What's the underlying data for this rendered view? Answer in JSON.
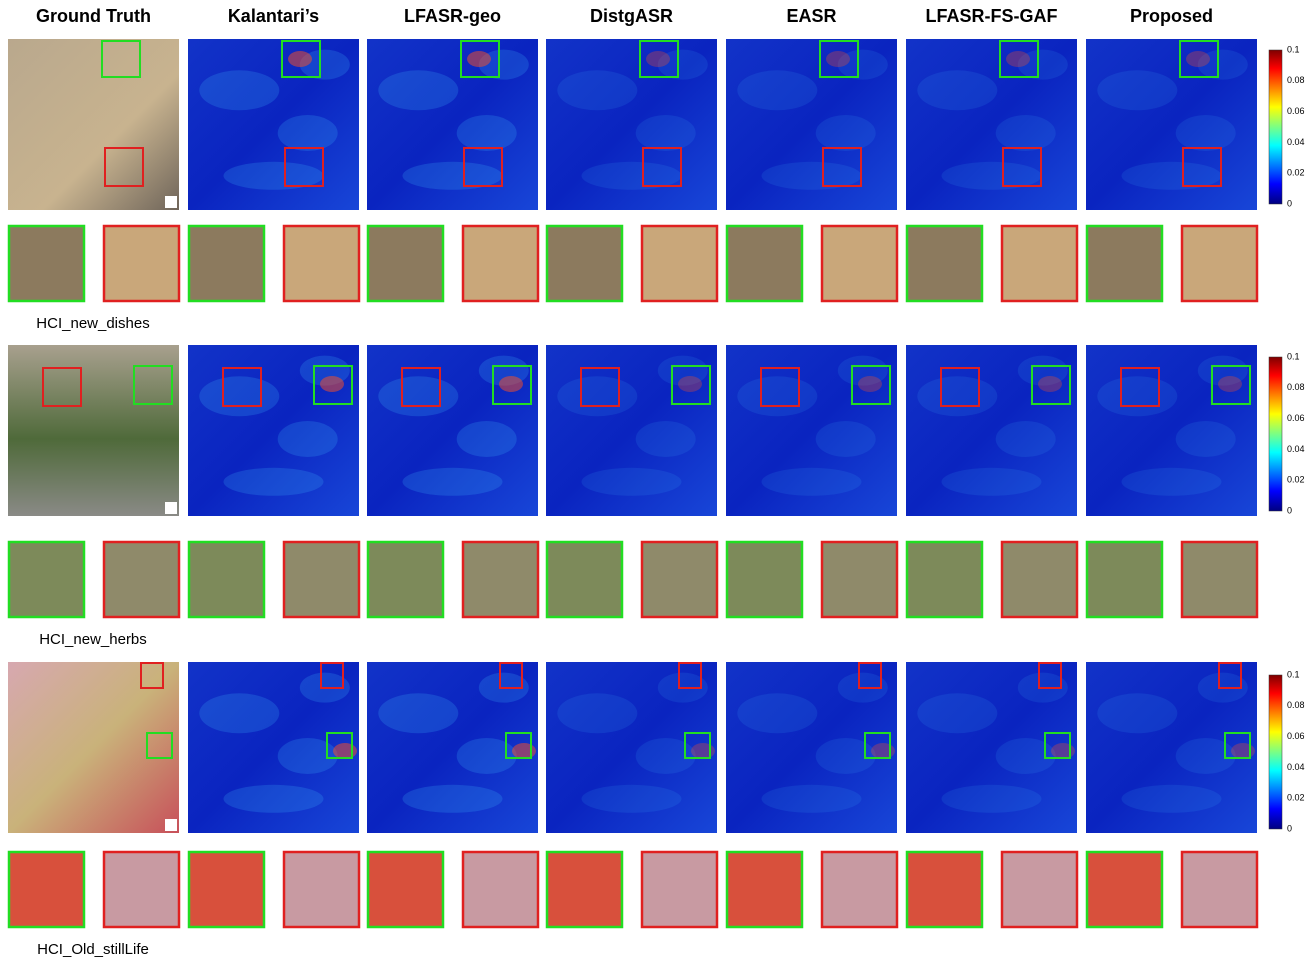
{
  "columns": [
    "Ground Truth",
    "Kalantari’s",
    "LFASR-geo",
    "DistgASR",
    "EASR",
    "LFASR-FS-GAF",
    "Proposed"
  ],
  "rows": [
    {
      "label": "HCI_new_dishes"
    },
    {
      "label": "HCI_new_herbs"
    },
    {
      "label": "HCI_Old_stillLife"
    }
  ],
  "colorbar_ticks": [
    "0.1",
    "0.08",
    "0.06",
    "0.04",
    "0.02",
    "0"
  ]
}
